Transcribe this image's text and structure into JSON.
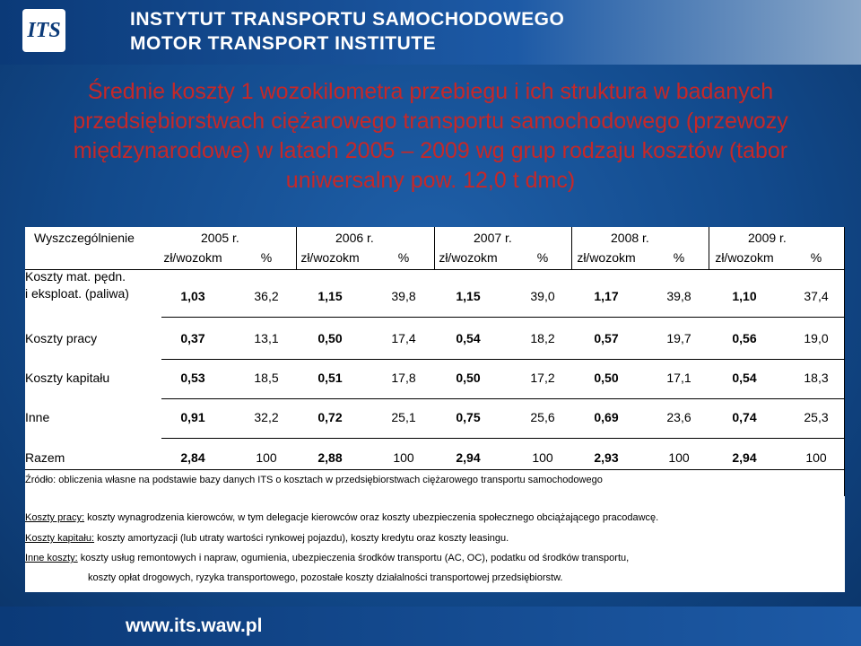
{
  "header": {
    "logo": "ITS",
    "line1": "INSTYTUT TRANSPORTU SAMOCHODOWEGO",
    "line2": "MOTOR TRANSPORT INSTITUTE"
  },
  "title": [
    "Średnie koszty 1 wozokilometra przebiegu i ich struktura w badanych",
    "przedsiębiorstwach ciężarowego transportu samochodowego (przewozy",
    "międzynarodowe) w latach 2005 – 2009 wg grup rodzaju kosztów (tabor",
    "uniwersalny pow. 12,0 t dmc)"
  ],
  "table": {
    "corner": "Wyszczególnienie",
    "years": [
      "2005 r.",
      "2006 r.",
      "2007 r.",
      "2008 r.",
      "2009 r."
    ],
    "subheaders": [
      "zł/wozokm",
      "%",
      "zł/wozokm",
      "%",
      "zł/wozokm",
      "%",
      "zł/wozokm",
      "%",
      "zł/wozokm",
      "%"
    ],
    "rows": [
      {
        "label": [
          "Koszty mat. pędn.",
          "i eksploat. (paliwa)"
        ],
        "values": [
          "1,03",
          "36,2",
          "1,15",
          "39,8",
          "1,15",
          "39,0",
          "1,17",
          "39,8",
          "1,10",
          "37,4"
        ]
      },
      {
        "label": [
          "Koszty pracy"
        ],
        "values": [
          "0,37",
          "13,1",
          "0,50",
          "17,4",
          "0,54",
          "18,2",
          "0,57",
          "19,7",
          "0,56",
          "19,0"
        ]
      },
      {
        "label": [
          "Koszty kapitału"
        ],
        "values": [
          "0,53",
          "18,5",
          "0,51",
          "17,8",
          "0,50",
          "17,2",
          "0,50",
          "17,1",
          "0,54",
          "18,3"
        ]
      },
      {
        "label": [
          "Inne"
        ],
        "values": [
          "0,91",
          "32,2",
          "0,72",
          "25,1",
          "0,75",
          "25,6",
          "0,69",
          "23,6",
          "0,74",
          "25,3"
        ]
      },
      {
        "label": [
          "Razem"
        ],
        "values": [
          "2,84",
          "100",
          "2,88",
          "100",
          "2,94",
          "100",
          "2,93",
          "100",
          "2,94",
          "100"
        ]
      }
    ]
  },
  "source": "Źródło: obliczenia własne na podstawie bazy danych ITS o kosztach w przedsiębiorstwach ciężarowego transportu samochodowego",
  "notes": [
    {
      "term": "Koszty pracy:",
      "text": " koszty wynagrodzenia kierowców, w tym delegacje kierowców oraz koszty ubezpieczenia społecznego obciążającego pracodawcę."
    },
    {
      "term": "Koszty kapitału:",
      "text": " koszty amortyzacji (lub utraty wartości rynkowej pojazdu), koszty kredytu oraz koszty leasingu."
    },
    {
      "term": "Inne koszty:",
      "text": " koszty usług remontowych i napraw, ogumienia, ubezpieczenia środków transportu (AC, OC), podatku od środków transportu,",
      "continuation": "koszty opłat drogowych, ryzyka transportowego, pozostałe koszty działalności transportowej przedsiębiorstw."
    }
  ],
  "footer": "www.its.waw.pl"
}
